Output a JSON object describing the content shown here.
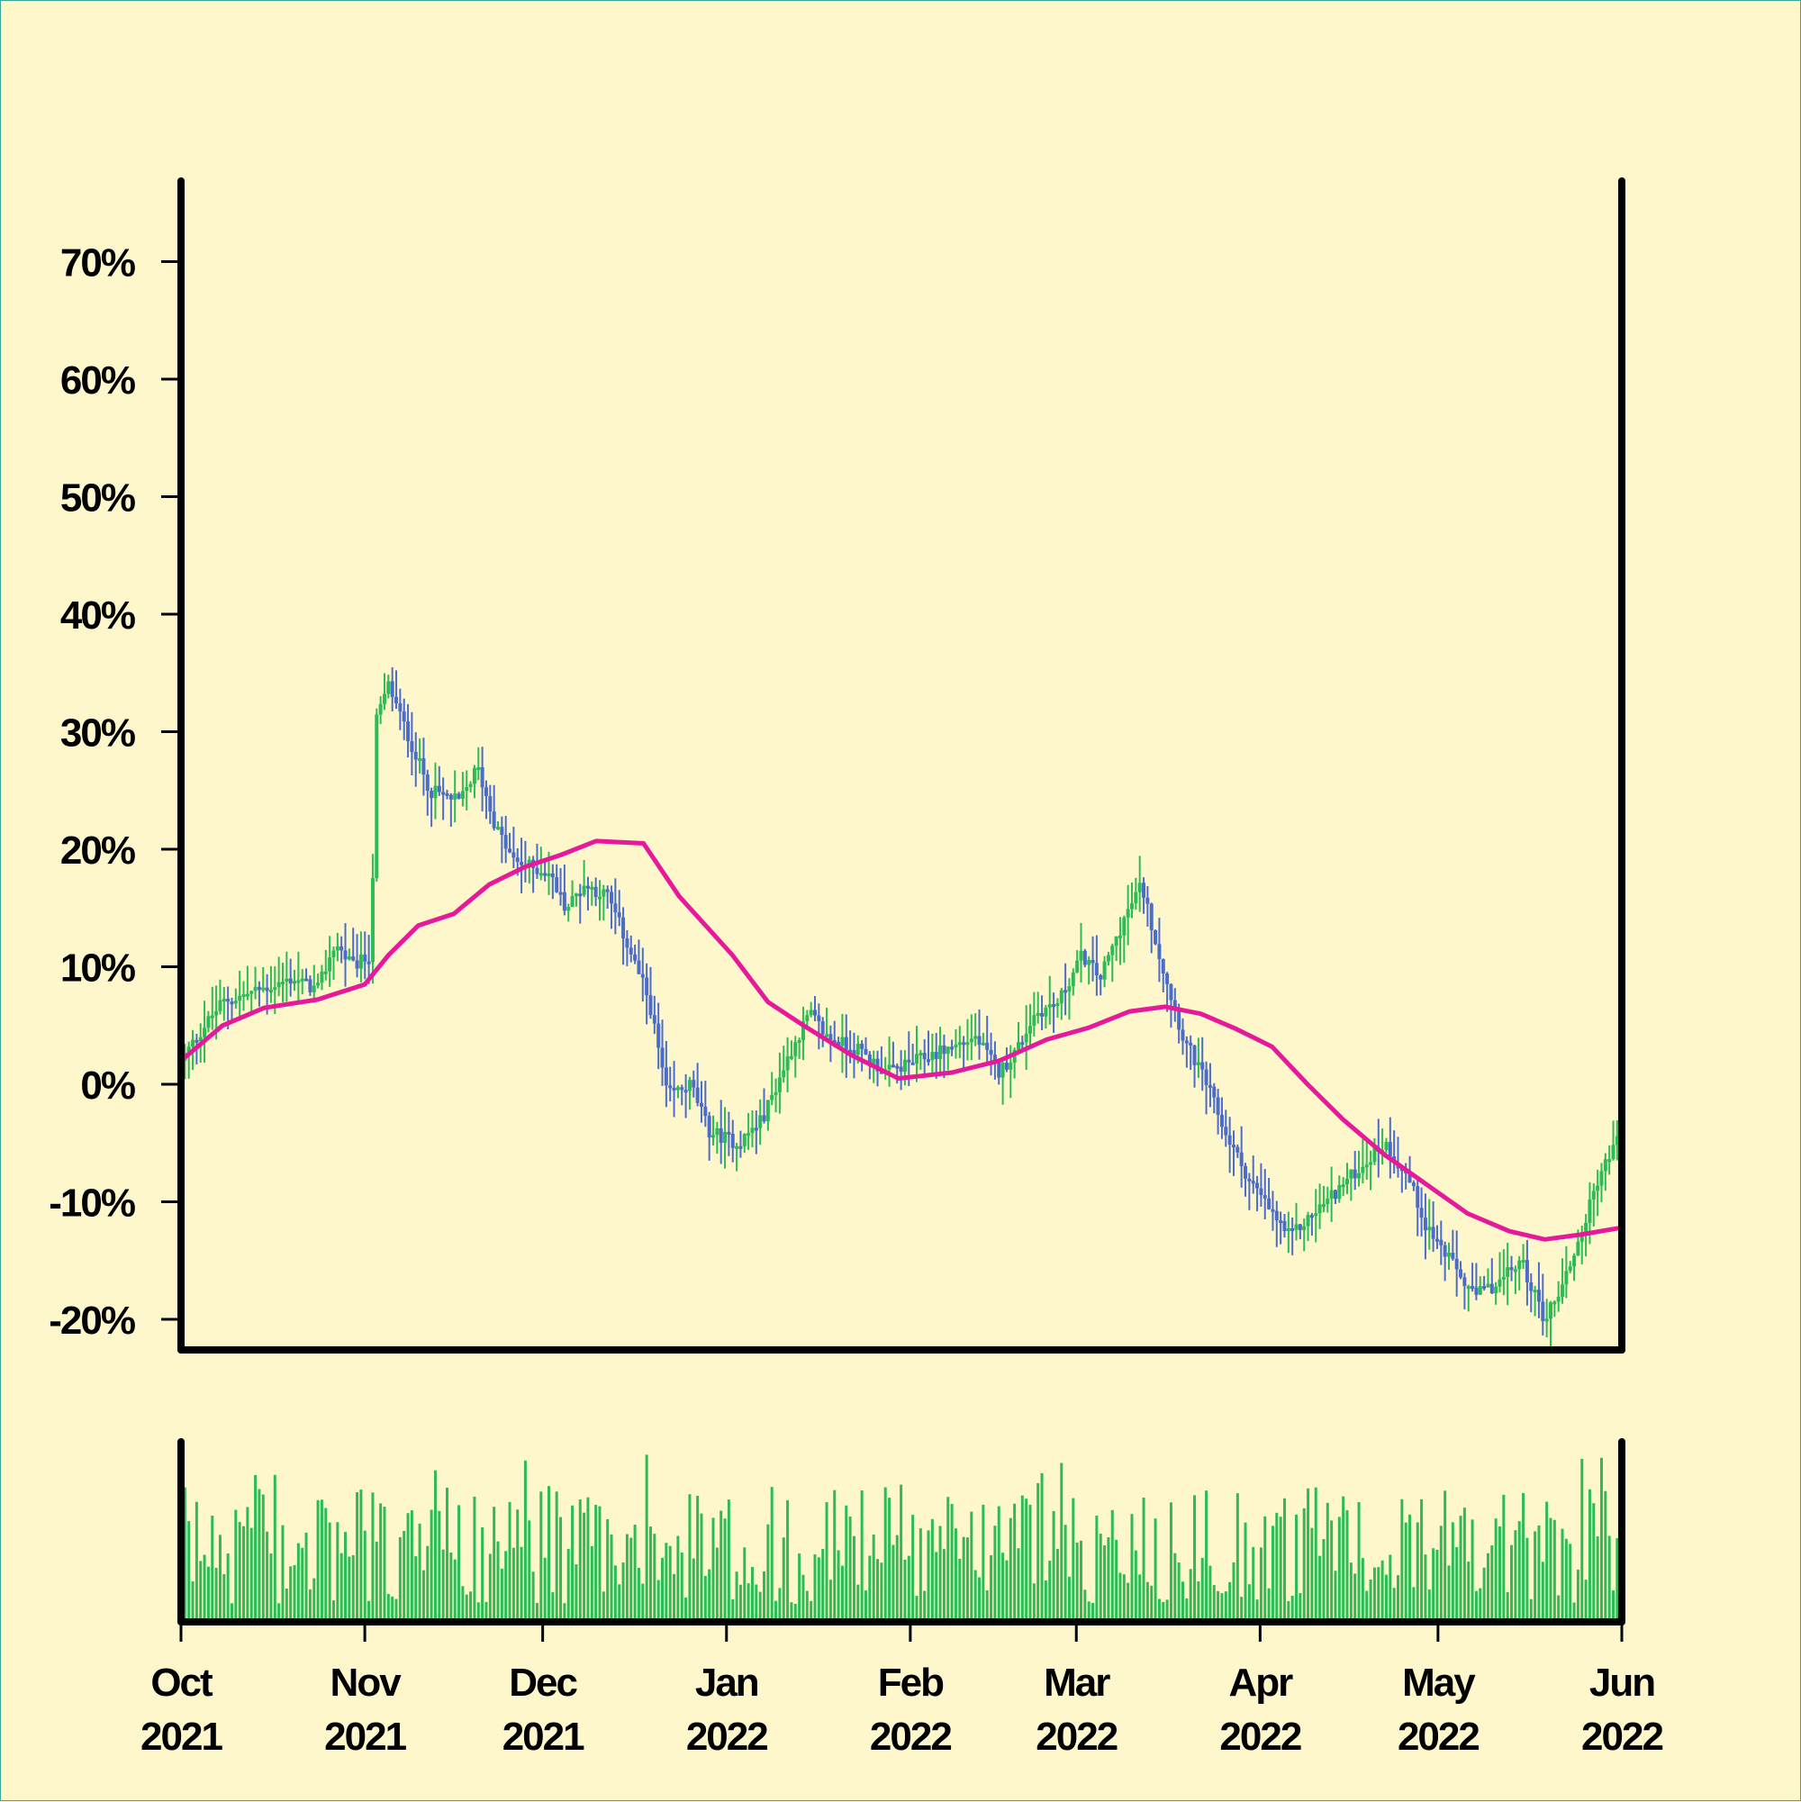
{
  "colors": {
    "background": "#fef7cc",
    "up": "#2dbb55",
    "down": "#4b6cc9",
    "moving_average": "#e6199a",
    "volume": "#2dbb55",
    "axes": "#000000"
  },
  "chart_data": [
    {
      "type": "candlestick",
      "title": "",
      "xlabel": "",
      "ylabel": "",
      "ylim": [
        -22,
        80
      ],
      "y_ticks": [
        -20,
        -10,
        0,
        10,
        20,
        30,
        40,
        50,
        60,
        70
      ],
      "y_tick_labels": [
        "-20%",
        "-10%",
        "0%",
        "10%",
        "20%",
        "30%",
        "40%",
        "50%",
        "60%",
        "70%"
      ],
      "x_range": [
        "2021-10-01",
        "2022-06-01"
      ],
      "x_ticks": [
        {
          "date": "2021-10-01",
          "month": "Oct",
          "year": "2021"
        },
        {
          "date": "2021-11-01",
          "month": "Nov",
          "year": "2021"
        },
        {
          "date": "2021-12-01",
          "month": "Dec",
          "year": "2021"
        },
        {
          "date": "2022-01-01",
          "month": "Jan",
          "year": "2022"
        },
        {
          "date": "2022-02-01",
          "month": "Feb",
          "year": "2022"
        },
        {
          "date": "2022-03-01",
          "month": "Mar",
          "year": "2022"
        },
        {
          "date": "2022-04-01",
          "month": "Apr",
          "year": "2022"
        },
        {
          "date": "2022-05-01",
          "month": "May",
          "year": "2022"
        },
        {
          "date": "2022-06-01",
          "month": "Jun",
          "year": "2022"
        }
      ],
      "close_path": [
        [
          "2021-10-01",
          2
        ],
        [
          "2021-10-05",
          5
        ],
        [
          "2021-10-08",
          7
        ],
        [
          "2021-10-14",
          8
        ],
        [
          "2021-10-20",
          9
        ],
        [
          "2021-10-24",
          8
        ],
        [
          "2021-10-27",
          12
        ],
        [
          "2021-10-30",
          10
        ],
        [
          "2021-11-02",
          11
        ],
        [
          "2021-11-03",
          31
        ],
        [
          "2021-11-05",
          34
        ],
        [
          "2021-11-08",
          30
        ],
        [
          "2021-11-12",
          25
        ],
        [
          "2021-11-17",
          24
        ],
        [
          "2021-11-20",
          27
        ],
        [
          "2021-11-23",
          22
        ],
        [
          "2021-11-26",
          19
        ],
        [
          "2021-12-02",
          18
        ],
        [
          "2021-12-05",
          15
        ],
        [
          "2021-12-08",
          17
        ],
        [
          "2021-12-12",
          16
        ],
        [
          "2021-12-16",
          11
        ],
        [
          "2021-12-19",
          7
        ],
        [
          "2021-12-22",
          -1
        ],
        [
          "2021-12-26",
          0
        ],
        [
          "2021-12-29",
          -4
        ],
        [
          "2022-01-03",
          -5
        ],
        [
          "2022-01-07",
          -3
        ],
        [
          "2022-01-12",
          3
        ],
        [
          "2022-01-15",
          6
        ],
        [
          "2022-01-18",
          4
        ],
        [
          "2022-01-23",
          3
        ],
        [
          "2022-01-28",
          1
        ],
        [
          "2022-02-02",
          2
        ],
        [
          "2022-02-07",
          3
        ],
        [
          "2022-02-12",
          4
        ],
        [
          "2022-02-16",
          1
        ],
        [
          "2022-02-19",
          3
        ],
        [
          "2022-02-22",
          6
        ],
        [
          "2022-02-26",
          7
        ],
        [
          "2022-03-02",
          11
        ],
        [
          "2022-03-05",
          9
        ],
        [
          "2022-03-09",
          14
        ],
        [
          "2022-03-12",
          17
        ],
        [
          "2022-03-15",
          11
        ],
        [
          "2022-03-19",
          4
        ],
        [
          "2022-03-23",
          0
        ],
        [
          "2022-03-26",
          -4
        ],
        [
          "2022-03-30",
          -8
        ],
        [
          "2022-04-03",
          -11
        ],
        [
          "2022-04-06",
          -13
        ],
        [
          "2022-04-10",
          -11
        ],
        [
          "2022-04-14",
          -9
        ],
        [
          "2022-04-18",
          -7
        ],
        [
          "2022-04-22",
          -5
        ],
        [
          "2022-04-26",
          -8
        ],
        [
          "2022-04-29",
          -12
        ],
        [
          "2022-05-03",
          -15
        ],
        [
          "2022-05-07",
          -18
        ],
        [
          "2022-05-11",
          -17
        ],
        [
          "2022-05-15",
          -15
        ],
        [
          "2022-05-19",
          -20
        ],
        [
          "2022-05-22",
          -17
        ],
        [
          "2022-05-25",
          -13
        ],
        [
          "2022-05-28",
          -8
        ],
        [
          "2022-06-01",
          -4
        ]
      ],
      "moving_average": {
        "points": [
          [
            "2021-10-01",
            2
          ],
          [
            "2021-10-08",
            5
          ],
          [
            "2021-10-15",
            6.5
          ],
          [
            "2021-10-24",
            7.2
          ],
          [
            "2021-11-01",
            8.5
          ],
          [
            "2021-11-05",
            11
          ],
          [
            "2021-11-10",
            13.5
          ],
          [
            "2021-11-16",
            14.5
          ],
          [
            "2021-11-22",
            17
          ],
          [
            "2021-11-28",
            18.5
          ],
          [
            "2021-12-04",
            19.5
          ],
          [
            "2021-12-10",
            20.7
          ],
          [
            "2021-12-18",
            20.5
          ],
          [
            "2021-12-24",
            16
          ],
          [
            "2022-01-02",
            11
          ],
          [
            "2022-01-08",
            7
          ],
          [
            "2022-01-14",
            5
          ],
          [
            "2022-01-22",
            2.5
          ],
          [
            "2022-01-30",
            0.5
          ],
          [
            "2022-02-08",
            1
          ],
          [
            "2022-02-16",
            2
          ],
          [
            "2022-02-24",
            3.8
          ],
          [
            "2022-03-03",
            4.8
          ],
          [
            "2022-03-10",
            6.2
          ],
          [
            "2022-03-16",
            6.6
          ],
          [
            "2022-03-22",
            6
          ],
          [
            "2022-03-28",
            4.7
          ],
          [
            "2022-04-03",
            3.2
          ],
          [
            "2022-04-09",
            0
          ],
          [
            "2022-04-15",
            -3
          ],
          [
            "2022-04-22",
            -6
          ],
          [
            "2022-04-29",
            -8.5
          ],
          [
            "2022-05-06",
            -11
          ],
          [
            "2022-05-13",
            -12.5
          ],
          [
            "2022-05-19",
            -13.2
          ],
          [
            "2022-05-25",
            -12.8
          ],
          [
            "2022-06-01",
            -12.2
          ]
        ]
      }
    },
    {
      "type": "bar",
      "title": "",
      "xlabel": "",
      "ylabel": "",
      "description_values": "daily volume (relative, unlabelled axis)",
      "x_range": [
        "2021-10-01",
        "2022-06-01"
      ],
      "ylim": [
        0,
        1
      ]
    }
  ]
}
